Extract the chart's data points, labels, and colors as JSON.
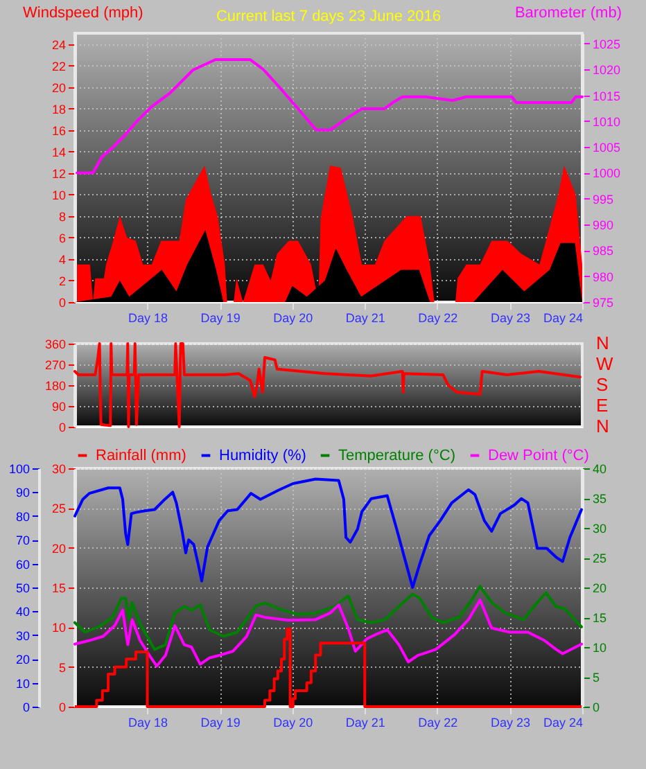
{
  "chart_data": [
    {
      "type": "area",
      "title": "Current last 7 days 23 June 2016",
      "ylabel": "Windspeed (mph)",
      "y2label": "Barometer (mb)",
      "xlim": [
        "2016-06-17T00:00",
        "2016-06-24T00:00"
      ],
      "xticks": [
        {
          "value": "2016-06-18T00:00",
          "label": "Day 18"
        },
        {
          "value": "2016-06-19T00:00",
          "label": "Day 19"
        },
        {
          "value": "2016-06-20T00:00",
          "label": "Day 20"
        },
        {
          "value": "2016-06-21T00:00",
          "label": "Day 21"
        },
        {
          "value": "2016-06-22T00:00",
          "label": "Day 22"
        },
        {
          "value": "2016-06-23T00:00",
          "label": "Day 23"
        },
        {
          "value": "2016-06-24T00:00",
          "label": "Day 24"
        }
      ],
      "ylim": [
        0,
        25
      ],
      "yticks": [
        0,
        2,
        4,
        6,
        8,
        10,
        12,
        14,
        16,
        18,
        20,
        22,
        24
      ],
      "y2lim": [
        975,
        1027
      ],
      "y2ticks": [
        975,
        980,
        985,
        990,
        995,
        1000,
        1005,
        1010,
        1015,
        1020,
        1025
      ],
      "grid": true,
      "series": [
        {
          "color": "#ff0000",
          "x": [
            "2016-06-17T00:43",
            "2016-06-17T05:02",
            "2016-06-17T06:00",
            "2016-06-17T06:43",
            "2016-06-17T09:36",
            "2016-06-17T10:19",
            "2016-06-17T12:43",
            "2016-06-17T14:53",
            "2016-06-17T17:17",
            "2016-06-17T20:10",
            "2016-06-17T22:34",
            "2016-06-18T01:26",
            "2016-06-18T04:34",
            "2016-06-18T10:34",
            "2016-06-18T12:43",
            "2016-06-18T16:34",
            "2016-06-18T18:58",
            "2016-06-18T21:07",
            "2016-06-18T23:17",
            "2016-06-19T01:41",
            "2016-06-19T02:24",
            "2016-06-19T04:34",
            "2016-06-19T05:31",
            "2016-06-19T07:41",
            "2016-06-19T11:31",
            "2016-06-19T14:24",
            "2016-06-19T16:48",
            "2016-06-19T18:58",
            "2016-06-19T22:48",
            "2016-06-20T01:55",
            "2016-06-20T06:14",
            "2016-06-20T08:38",
            "2016-06-20T09:22",
            "2016-06-20T12:29",
            "2016-06-20T16:05",
            "2016-06-20T19:55",
            "2016-06-20T23:02",
            "2016-06-21T03:22",
            "2016-06-21T06:29",
            "2016-06-21T13:55",
            "2016-06-21T18:29",
            "2016-06-21T21:36",
            "2016-06-21T23:02",
            "2016-06-22T06:00",
            "2016-06-22T06:43",
            "2016-06-22T09:36",
            "2016-06-22T14:10",
            "2016-06-22T18:00",
            "2016-06-22T23:17",
            "2016-06-23T03:50",
            "2016-06-23T09:50",
            "2016-06-23T12:00",
            "2016-06-23T16:05",
            "2016-06-23T18:00",
            "2016-06-23T21:50",
            "2016-06-24T00:00"
          ],
          "values": [
            3.5,
            3.5,
            0,
            2.2,
            2.2,
            3.5,
            5.7,
            8,
            6,
            5.7,
            3.5,
            3.5,
            5.7,
            5.7,
            9.5,
            11.5,
            12.7,
            10,
            8,
            3.5,
            0,
            0,
            2.2,
            0,
            3.5,
            3.5,
            2,
            4.5,
            5.7,
            5.7,
            3.5,
            0,
            7.7,
            12.7,
            12.5,
            8,
            3.5,
            3.5,
            5.7,
            8,
            8,
            3.5,
            0,
            0,
            2.2,
            3.5,
            3.5,
            5.7,
            5.7,
            4.5,
            3.5,
            5.7,
            10,
            12.7,
            10,
            3.5
          ]
        },
        {
          "color": "#000000",
          "x": [
            "2016-06-17T00:00",
            "2016-06-17T12:00",
            "2016-06-17T14:53",
            "2016-06-17T18:00",
            "2016-06-18T04:48",
            "2016-06-18T09:36",
            "2016-06-18T13:12",
            "2016-06-18T19:12",
            "2016-06-18T22:48",
            "2016-06-19T01:12",
            "2016-06-19T21:36",
            "2016-06-20T00:00",
            "2016-06-20T04:48",
            "2016-06-20T10:48",
            "2016-06-20T14:24",
            "2016-06-20T18:00",
            "2016-06-20T22:48",
            "2016-06-21T12:00",
            "2016-06-21T18:00",
            "2016-06-21T21:36",
            "2016-06-22T12:00",
            "2016-06-22T21:36",
            "2016-06-23T04:48",
            "2016-06-23T13:12",
            "2016-06-23T16:48",
            "2016-06-23T21:36",
            "2016-06-24T00:00"
          ],
          "values": [
            0,
            0.5,
            2,
            0.5,
            3,
            1,
            3.5,
            6.7,
            3,
            0,
            0,
            1.5,
            0.5,
            2,
            5,
            3,
            0.5,
            3,
            3,
            0,
            0,
            3,
            1,
            3,
            5.5,
            5.5,
            0
          ]
        },
        {
          "type": "line",
          "axis": "y2",
          "color": "#ff00ff",
          "x": [
            "2016-06-17T00:43",
            "2016-06-17T06:00",
            "2016-06-17T08:53",
            "2016-06-17T12:43",
            "2016-06-17T16:34",
            "2016-06-17T20:53",
            "2016-06-18T01:26",
            "2016-06-18T07:26",
            "2016-06-18T15:07",
            "2016-06-18T22:34",
            "2016-06-19T10:05",
            "2016-06-19T14:24",
            "2016-06-19T19:41",
            "2016-06-20T01:55",
            "2016-06-20T07:55",
            "2016-06-20T12:29",
            "2016-06-20T18:29",
            "2016-06-20T23:02",
            "2016-06-21T06:29",
            "2016-06-21T09:36",
            "2016-06-21T12:29",
            "2016-06-21T20:10",
            "2016-06-22T05:02",
            "2016-06-22T09:36",
            "2016-06-23T00:43",
            "2016-06-23T02:10",
            "2016-06-23T20:24",
            "2016-06-23T21:50",
            "2016-06-24T00:00"
          ],
          "values": [
            1000,
            1000,
            1003,
            1005,
            1007.3,
            1010.2,
            1012.8,
            1015.4,
            1019.9,
            1021.9,
            1021.9,
            1020,
            1016.6,
            1012.4,
            1008.3,
            1008.3,
            1010.7,
            1012.4,
            1012.4,
            1013.7,
            1014.7,
            1014.7,
            1014,
            1014.7,
            1014.7,
            1013.6,
            1013.6,
            1014.7,
            1014.7
          ]
        }
      ]
    },
    {
      "type": "line",
      "xlim": [
        "2016-06-17T00:00",
        "2016-06-24T00:00"
      ],
      "ylim": [
        0,
        360
      ],
      "yticks": [
        0,
        90,
        180,
        270,
        360
      ],
      "annotations": [
        "N",
        "W",
        "S",
        "E",
        "N"
      ],
      "grid": "y",
      "tick_labels": "y",
      "series": [
        {
          "color": "#ff0000",
          "x": [
            "2016-06-17T00:00",
            "2016-06-17T01:12",
            "2016-06-17T06:43",
            "2016-06-17T07:26",
            "2016-06-17T08:10",
            "2016-06-17T08:38",
            "2016-06-17T11:46",
            "2016-06-17T12:00",
            "2016-06-17T12:14",
            "2016-06-17T17:17",
            "2016-06-17T17:31",
            "2016-06-17T17:46",
            "2016-06-17T18:00",
            "2016-06-17T19:41",
            "2016-06-17T19:55",
            "2016-06-17T20:24",
            "2016-06-17T21:07",
            "2016-06-18T09:07",
            "2016-06-18T09:22",
            "2016-06-18T10:34",
            "2016-06-18T11:02",
            "2016-06-18T11:46",
            "2016-06-18T12:14",
            "2016-06-19T01:41",
            "2016-06-19T06:14",
            "2016-06-19T10:05",
            "2016-06-19T11:31",
            "2016-06-19T12:14",
            "2016-06-19T12:58",
            "2016-06-19T14:10",
            "2016-06-19T14:53",
            "2016-06-19T18:14",
            "2016-06-19T18:58",
            "2016-06-20T10:48",
            "2016-06-21T01:55",
            "2016-06-21T12:29",
            "2016-06-21T12:43",
            "2016-06-21T12:58",
            "2016-06-22T01:55",
            "2016-06-22T03:36",
            "2016-06-22T06:29",
            "2016-06-22T14:10",
            "2016-06-22T14:53",
            "2016-06-22T23:02",
            "2016-06-23T09:36",
            "2016-06-23T23:17"
          ],
          "values": [
            240,
            225,
            225,
            280,
            360,
            10,
            5,
            360,
            225,
            225,
            360,
            0,
            225,
            225,
            360,
            10,
            225,
            225,
            360,
            0,
            360,
            360,
            225,
            225,
            230,
            200,
            130,
            170,
            250,
            150,
            300,
            290,
            250,
            230,
            220,
            240,
            150,
            230,
            225,
            180,
            150,
            140,
            240,
            225,
            240,
            215
          ]
        }
      ]
    },
    {
      "type": "line",
      "legend": "top",
      "xlim": [
        "2016-06-17T00:00",
        "2016-06-24T00:00"
      ],
      "xticks": [
        {
          "value": "2016-06-18T00:00",
          "label": "Day 18"
        },
        {
          "value": "2016-06-19T00:00",
          "label": "Day 19"
        },
        {
          "value": "2016-06-20T00:00",
          "label": "Day 20"
        },
        {
          "value": "2016-06-21T00:00",
          "label": "Day 21"
        },
        {
          "value": "2016-06-22T00:00",
          "label": "Day 22"
        },
        {
          "value": "2016-06-23T00:00",
          "label": "Day 23"
        },
        {
          "value": "2016-06-24T00:00",
          "label": "Day 24"
        }
      ],
      "ylim": [
        0,
        30
      ],
      "yticks": [
        0,
        5,
        10,
        15,
        20,
        25,
        30
      ],
      "y3lim": [
        0,
        100
      ],
      "y3ticks": [
        0,
        10,
        20,
        30,
        40,
        50,
        60,
        70,
        80,
        90,
        100
      ],
      "y2lim": [
        0,
        40
      ],
      "y2ticks": [
        0,
        5,
        10,
        15,
        20,
        25,
        30,
        35,
        40
      ],
      "grid": true,
      "series": [
        {
          "name": "Rainfall (mm)",
          "type": "step",
          "color": "#ff0000",
          "x": [
            "2016-06-17T00:00",
            "2016-06-17T07:12",
            "2016-06-17T09:07",
            "2016-06-17T11:02",
            "2016-06-17T13:12",
            "2016-06-17T17:02",
            "2016-06-17T20:10",
            "2016-06-18T00:00",
            "2016-06-19T14:53",
            "2016-06-19T16:34",
            "2016-06-19T18:00",
            "2016-06-19T19:12",
            "2016-06-19T20:24",
            "2016-06-19T21:22",
            "2016-06-19T22:19",
            "2016-06-19T23:17",
            "2016-06-20T00:14",
            "2016-06-20T00:58",
            "2016-06-20T04:48",
            "2016-06-20T06:14",
            "2016-06-20T07:41",
            "2016-06-20T09:22",
            "2016-06-21T00:00",
            "2016-06-23T23:46"
          ],
          "values": [
            0,
            0.8,
            2,
            4.1,
            5,
            6,
            6.9,
            0,
            0.8,
            2,
            3.5,
            4.5,
            6,
            8.5,
            9.8,
            0,
            1,
            2,
            3,
            4.5,
            6.5,
            8,
            0,
            0
          ]
        },
        {
          "name": "Humidity (%)",
          "axis": "y3",
          "color": "#0000ff",
          "x": [
            "2016-06-17T00:00",
            "2016-06-17T02:38",
            "2016-06-17T04:48",
            "2016-06-17T11:02",
            "2016-06-17T14:53",
            "2016-06-17T15:50",
            "2016-06-17T16:48",
            "2016-06-17T17:31",
            "2016-06-17T18:43",
            "2016-06-17T20:10",
            "2016-06-17T23:17",
            "2016-06-18T02:24",
            "2016-06-18T05:17",
            "2016-06-18T08:24",
            "2016-06-18T09:36",
            "2016-06-18T11:31",
            "2016-06-18T12:43",
            "2016-06-18T13:41",
            "2016-06-18T15:22",
            "2016-06-18T16:48",
            "2016-06-18T18:00",
            "2016-06-18T19:55",
            "2016-06-18T23:46",
            "2016-06-19T02:38",
            "2016-06-19T05:46",
            "2016-06-19T10:19",
            "2016-06-19T13:26",
            "2016-06-19T19:41",
            "2016-06-20T00:14",
            "2016-06-20T07:41",
            "2016-06-20T15:22",
            "2016-06-20T17:02",
            "2016-06-20T17:46",
            "2016-06-20T19:12",
            "2016-06-20T21:36",
            "2016-06-20T23:02",
            "2016-06-21T02:10",
            "2016-06-21T07:26",
            "2016-06-21T10:34",
            "2016-06-21T13:41",
            "2016-06-21T15:50",
            "2016-06-21T18:14",
            "2016-06-21T21:22",
            "2016-06-22T00:58",
            "2016-06-22T04:48",
            "2016-06-22T10:19",
            "2016-06-22T12:29",
            "2016-06-22T15:36",
            "2016-06-22T18:00",
            "2016-06-22T20:53",
            "2016-06-23T01:26",
            "2016-06-23T03:50",
            "2016-06-23T06:00",
            "2016-06-23T09:07",
            "2016-06-23T12:14",
            "2016-06-23T15:22",
            "2016-06-23T17:31",
            "2016-06-23T19:55",
            "2016-06-23T23:46"
          ],
          "values": [
            80,
            87,
            89.5,
            91.8,
            91.8,
            87,
            72.7,
            68,
            81,
            81.5,
            82.2,
            82.7,
            86.4,
            90,
            85.5,
            73.6,
            64.5,
            70,
            68,
            60,
            52.7,
            67,
            78,
            82.2,
            82.7,
            89.5,
            87,
            91,
            93.6,
            95.5,
            94.9,
            87,
            71,
            69,
            74.5,
            81.8,
            87.3,
            88.5,
            74.5,
            60,
            50,
            60,
            71.8,
            78,
            85.5,
            91,
            89,
            78,
            73.6,
            81,
            84.5,
            87.3,
            85.5,
            66.4,
            66.4,
            62.7,
            60.9,
            71,
            82.7
          ]
        },
        {
          "name": "Temperature (°C)",
          "axis": "y2",
          "color": "#008000",
          "x": [
            "2016-06-17T00:00",
            "2016-06-17T03:22",
            "2016-06-17T07:55",
            "2016-06-17T12:29",
            "2016-06-17T15:22",
            "2016-06-17T16:48",
            "2016-06-17T18:00",
            "2016-06-17T18:58",
            "2016-06-17T21:36",
            "2016-06-18T02:24",
            "2016-06-18T06:00",
            "2016-06-18T09:07",
            "2016-06-18T12:14",
            "2016-06-18T14:38",
            "2016-06-18T17:31",
            "2016-06-18T20:38",
            "2016-06-19T01:12",
            "2016-06-19T05:46",
            "2016-06-19T12:00",
            "2016-06-19T14:53",
            "2016-06-19T19:41",
            "2016-06-20T01:41",
            "2016-06-20T07:41",
            "2016-06-20T13:55",
            "2016-06-20T18:29",
            "2016-06-20T21:36",
            "2016-06-21T02:10",
            "2016-06-21T06:43",
            "2016-06-21T11:17",
            "2016-06-21T15:50",
            "2016-06-21T18:14",
            "2016-06-21T22:05",
            "2016-06-22T01:55",
            "2016-06-22T07:12",
            "2016-06-22T11:46",
            "2016-06-22T14:10",
            "2016-06-22T18:00",
            "2016-06-22T22:34",
            "2016-06-23T04:34",
            "2016-06-23T09:07",
            "2016-06-23T12:00",
            "2016-06-23T15:22",
            "2016-06-23T18:14",
            "2016-06-23T23:46"
          ],
          "values": [
            14.1,
            12.5,
            13.4,
            15,
            18.2,
            18.2,
            14.6,
            17.5,
            13.9,
            9.6,
            10.4,
            15.7,
            16.8,
            16.2,
            17.1,
            12.9,
            11.8,
            12.5,
            16.9,
            17.4,
            16.4,
            15.5,
            15.7,
            16.8,
            18.6,
            14.6,
            14.1,
            14.6,
            16.8,
            18.9,
            18.2,
            15,
            14.1,
            15,
            18.2,
            20.2,
            17.5,
            15.7,
            14.6,
            17.5,
            19.1,
            16.8,
            16.4,
            13.4
          ]
        },
        {
          "name": "Dew Point (°C)",
          "axis": "y2",
          "color": "#ff00ff",
          "x": [
            "2016-06-17T00:00",
            "2016-06-17T04:48",
            "2016-06-17T09:22",
            "2016-06-17T13:12",
            "2016-06-17T15:50",
            "2016-06-17T17:31",
            "2016-06-17T18:58",
            "2016-06-17T21:36",
            "2016-06-18T00:43",
            "2016-06-18T03:07",
            "2016-06-18T06:00",
            "2016-06-18T09:07",
            "2016-06-18T12:14",
            "2016-06-18T14:38",
            "2016-06-18T17:31",
            "2016-06-18T20:38",
            "2016-06-18T23:46",
            "2016-06-19T04:19",
            "2016-06-19T08:53",
            "2016-06-19T12:00",
            "2016-06-19T14:53",
            "2016-06-19T22:34",
            "2016-06-20T07:41",
            "2016-06-20T12:29",
            "2016-06-20T15:22",
            "2016-06-20T18:29",
            "2016-06-20T20:53",
            "2016-06-21T00:43",
            "2016-06-21T03:36",
            "2016-06-21T07:26",
            "2016-06-21T11:17",
            "2016-06-21T14:24",
            "2016-06-21T17:31",
            "2016-06-21T23:31",
            "2016-06-22T05:46",
            "2016-06-22T10:19",
            "2016-06-22T14:10",
            "2016-06-22T18:00",
            "2016-06-23T00:00",
            "2016-06-23T06:00",
            "2016-06-23T11:31",
            "2016-06-23T15:22",
            "2016-06-23T17:31",
            "2016-06-23T23:46"
          ],
          "values": [
            10.5,
            11.1,
            11.8,
            13.6,
            16.2,
            10.4,
            14.6,
            11.1,
            8.6,
            6.8,
            8.6,
            13.6,
            10.4,
            10,
            7.1,
            8.2,
            8.6,
            9.3,
            11.8,
            15.4,
            15,
            14.5,
            14.6,
            15.7,
            17.1,
            13.2,
            9.3,
            11.4,
            12.1,
            12.9,
            10.4,
            7.5,
            8.6,
            9.6,
            12.1,
            14.6,
            17.9,
            13.2,
            12.5,
            12.5,
            11.1,
            9.6,
            8.9,
            10.5
          ]
        }
      ]
    }
  ]
}
